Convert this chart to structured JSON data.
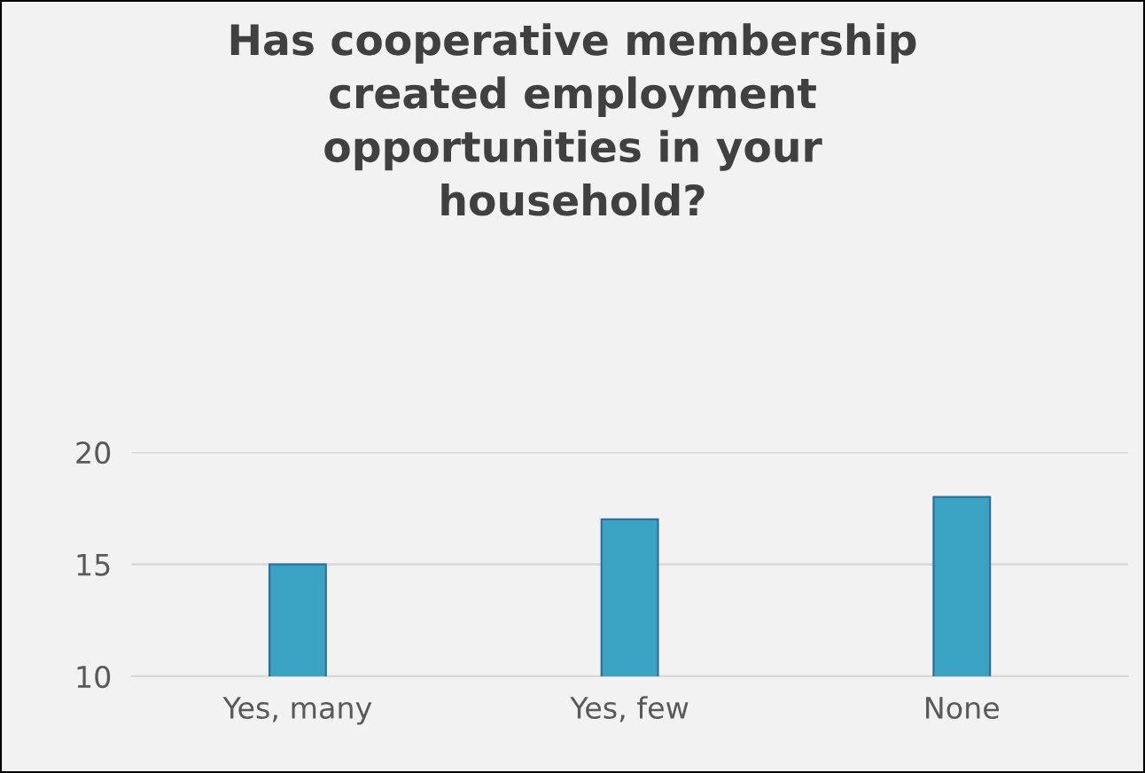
{
  "chart_data": {
    "type": "bar",
    "title": "Has cooperative membership\ncreated employment\nopportunities in your\nhousehold?",
    "categories": [
      "Yes, many",
      "Yes, few",
      "None"
    ],
    "values": [
      15,
      17,
      18
    ],
    "color": "#3aa3c3",
    "ylim": [
      10,
      20
    ],
    "yticks": [
      10,
      15,
      20
    ],
    "grid": "y",
    "legend": false
  }
}
